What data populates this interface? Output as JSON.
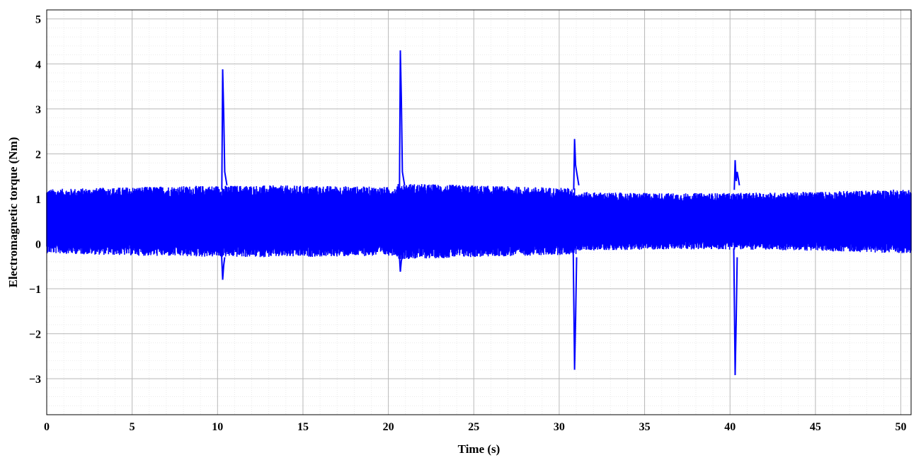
{
  "chart_data": {
    "type": "line",
    "title": "",
    "xlabel": "Time (s)",
    "ylabel": "Electromagnetic torque (Nm)",
    "xlim": [
      0,
      50.6
    ],
    "ylim": [
      -3.8,
      5.2
    ],
    "xticks": [
      0,
      5,
      10,
      15,
      20,
      25,
      30,
      35,
      40,
      45,
      50
    ],
    "yticks": [
      5,
      4,
      3,
      2,
      1,
      0,
      -1,
      -2,
      -3
    ],
    "ytick_labels": [
      "5",
      "4",
      "3",
      "2",
      "1",
      "0",
      "−1",
      "−2",
      "−3"
    ],
    "grid": true,
    "minor_grid": true,
    "color": "#0000ff",
    "series": [
      {
        "signal": "noisy torque band, approx. -0.15 to 1.25 Nm, center approx. 0.5 Nm",
        "band_center": 0.5,
        "band_halfwidth": 0.62,
        "spikes": [
          {
            "t": 10.3,
            "peak": 3.88,
            "trough": -0.8
          },
          {
            "t": 20.7,
            "peak": 4.3,
            "trough": -0.62
          },
          {
            "t": 30.9,
            "peak": 2.33,
            "trough": -2.8
          },
          {
            "t": 40.3,
            "peak": 1.86,
            "trough": -2.92
          }
        ]
      }
    ]
  }
}
